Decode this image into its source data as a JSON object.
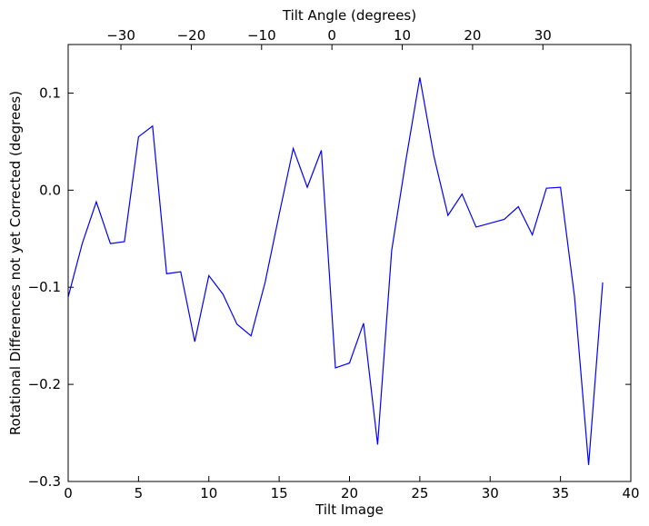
{
  "chart_data": {
    "type": "line",
    "title": "",
    "xlabel": "Tilt Image",
    "ylabel": "Rotational Differences not yet Corrected (degrees)",
    "x2label": "Tilt Angle (degrees)",
    "xlim": [
      0,
      40
    ],
    "ylim": [
      -0.3,
      0.15
    ],
    "xticks": [
      0,
      5,
      10,
      15,
      20,
      25,
      30,
      35,
      40
    ],
    "xtick_labels": [
      "0",
      "5",
      "10",
      "15",
      "20",
      "25",
      "30",
      "35",
      "40"
    ],
    "yticks": [
      -0.3,
      -0.2,
      -0.1,
      0.0,
      0.1
    ],
    "ytick_labels": [
      "−0.3",
      "−0.2",
      "−0.1",
      "0.0",
      "0.1"
    ],
    "x2_mapping": {
      "angle_at_tilt_image_0": -37.5,
      "degrees_per_tilt_image": 2.0
    },
    "x2ticks": [
      -30,
      -20,
      -10,
      0,
      10,
      20,
      30
    ],
    "x2tick_labels": [
      "−30",
      "−20",
      "−10",
      "0",
      "10",
      "20",
      "30"
    ],
    "grid": false,
    "series": [
      {
        "color": "#0000ff",
        "x": [
          0,
          1,
          2,
          3,
          4,
          5,
          6,
          7,
          8,
          9,
          10,
          11,
          12,
          13,
          14,
          15,
          16,
          17,
          18,
          19,
          20,
          21,
          22,
          23,
          24,
          25,
          26,
          27,
          28,
          29,
          30,
          31,
          32,
          33,
          34,
          35,
          36,
          37,
          38
        ],
        "y": [
          -0.11,
          -0.055,
          -0.012,
          -0.055,
          -0.053,
          0.055,
          0.066,
          -0.086,
          -0.084,
          -0.156,
          -0.088,
          -0.107,
          -0.138,
          -0.15,
          -0.095,
          -0.025,
          0.043,
          0.003,
          0.041,
          -0.183,
          -0.178,
          -0.137,
          -0.262,
          -0.062,
          0.03,
          0.116,
          0.035,
          -0.026,
          -0.004,
          -0.038,
          -0.034,
          -0.03,
          -0.017,
          -0.046,
          0.002,
          0.003,
          -0.11,
          -0.283,
          -0.095
        ]
      }
    ]
  }
}
